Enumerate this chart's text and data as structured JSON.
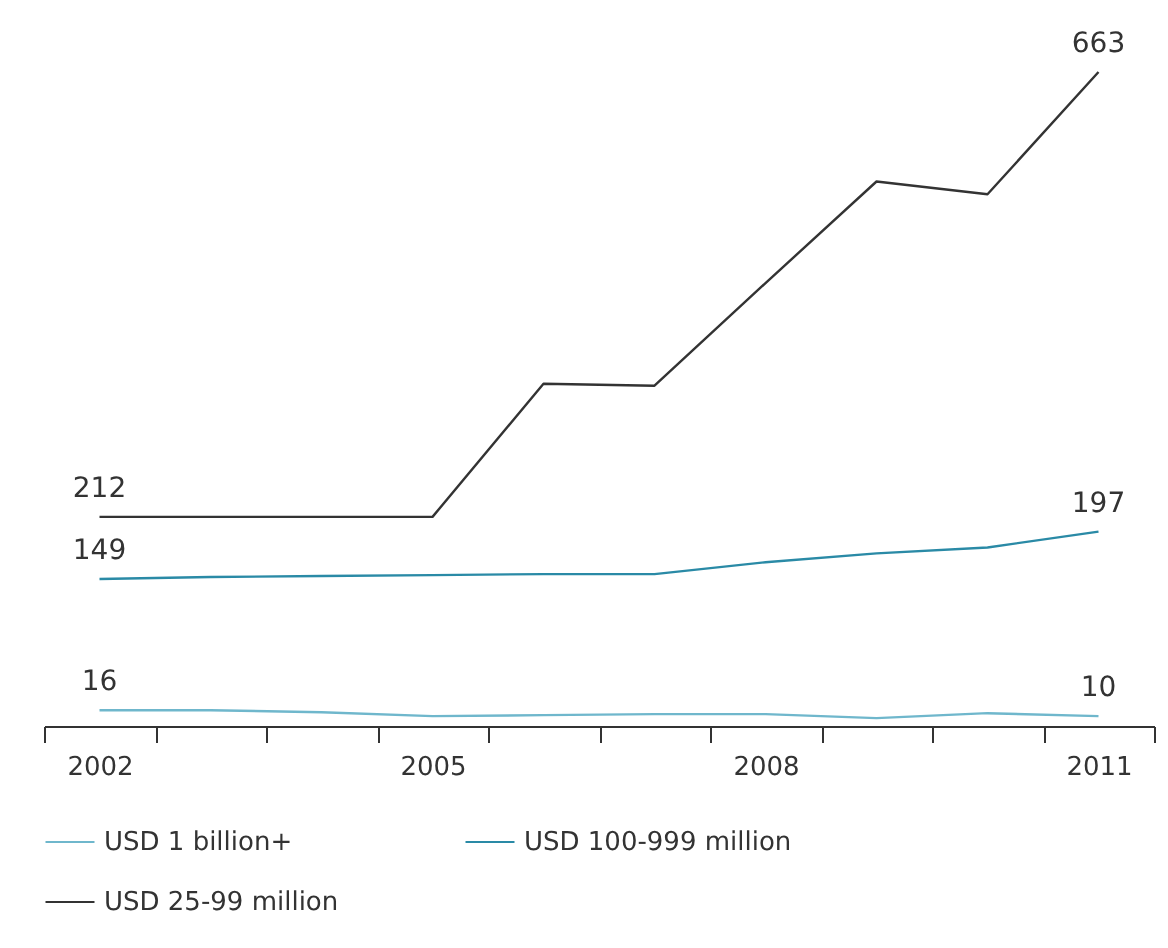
{
  "chart_data": {
    "type": "line",
    "categories": [
      "2002",
      null,
      null,
      "2005",
      null,
      null,
      "2008",
      null,
      null,
      "2011"
    ],
    "series": [
      {
        "name": "USD 1 billion+",
        "color": "#6fb7cc",
        "values": [
          16,
          16,
          14,
          10,
          11,
          12,
          12,
          8,
          13,
          10
        ],
        "value_labels": [
          "16",
          null,
          null,
          null,
          null,
          null,
          null,
          null,
          null,
          "10"
        ]
      },
      {
        "name": "USD 100-999 million",
        "color": "#2a8aa6",
        "values": [
          149,
          151,
          152,
          153,
          154,
          154,
          166,
          175,
          181,
          197
        ],
        "value_labels": [
          "149",
          null,
          null,
          null,
          null,
          null,
          null,
          null,
          null,
          "197"
        ]
      },
      {
        "name": "USD 25-99 million",
        "color": "#333333",
        "values": [
          212,
          212,
          212,
          212,
          347,
          345,
          449,
          552,
          539,
          663
        ],
        "value_labels": [
          "212",
          null,
          null,
          null,
          null,
          null,
          null,
          null,
          null,
          "663"
        ]
      }
    ],
    "grid": false,
    "legend": "bottom",
    "marker": "none",
    "line_style": "solid"
  }
}
